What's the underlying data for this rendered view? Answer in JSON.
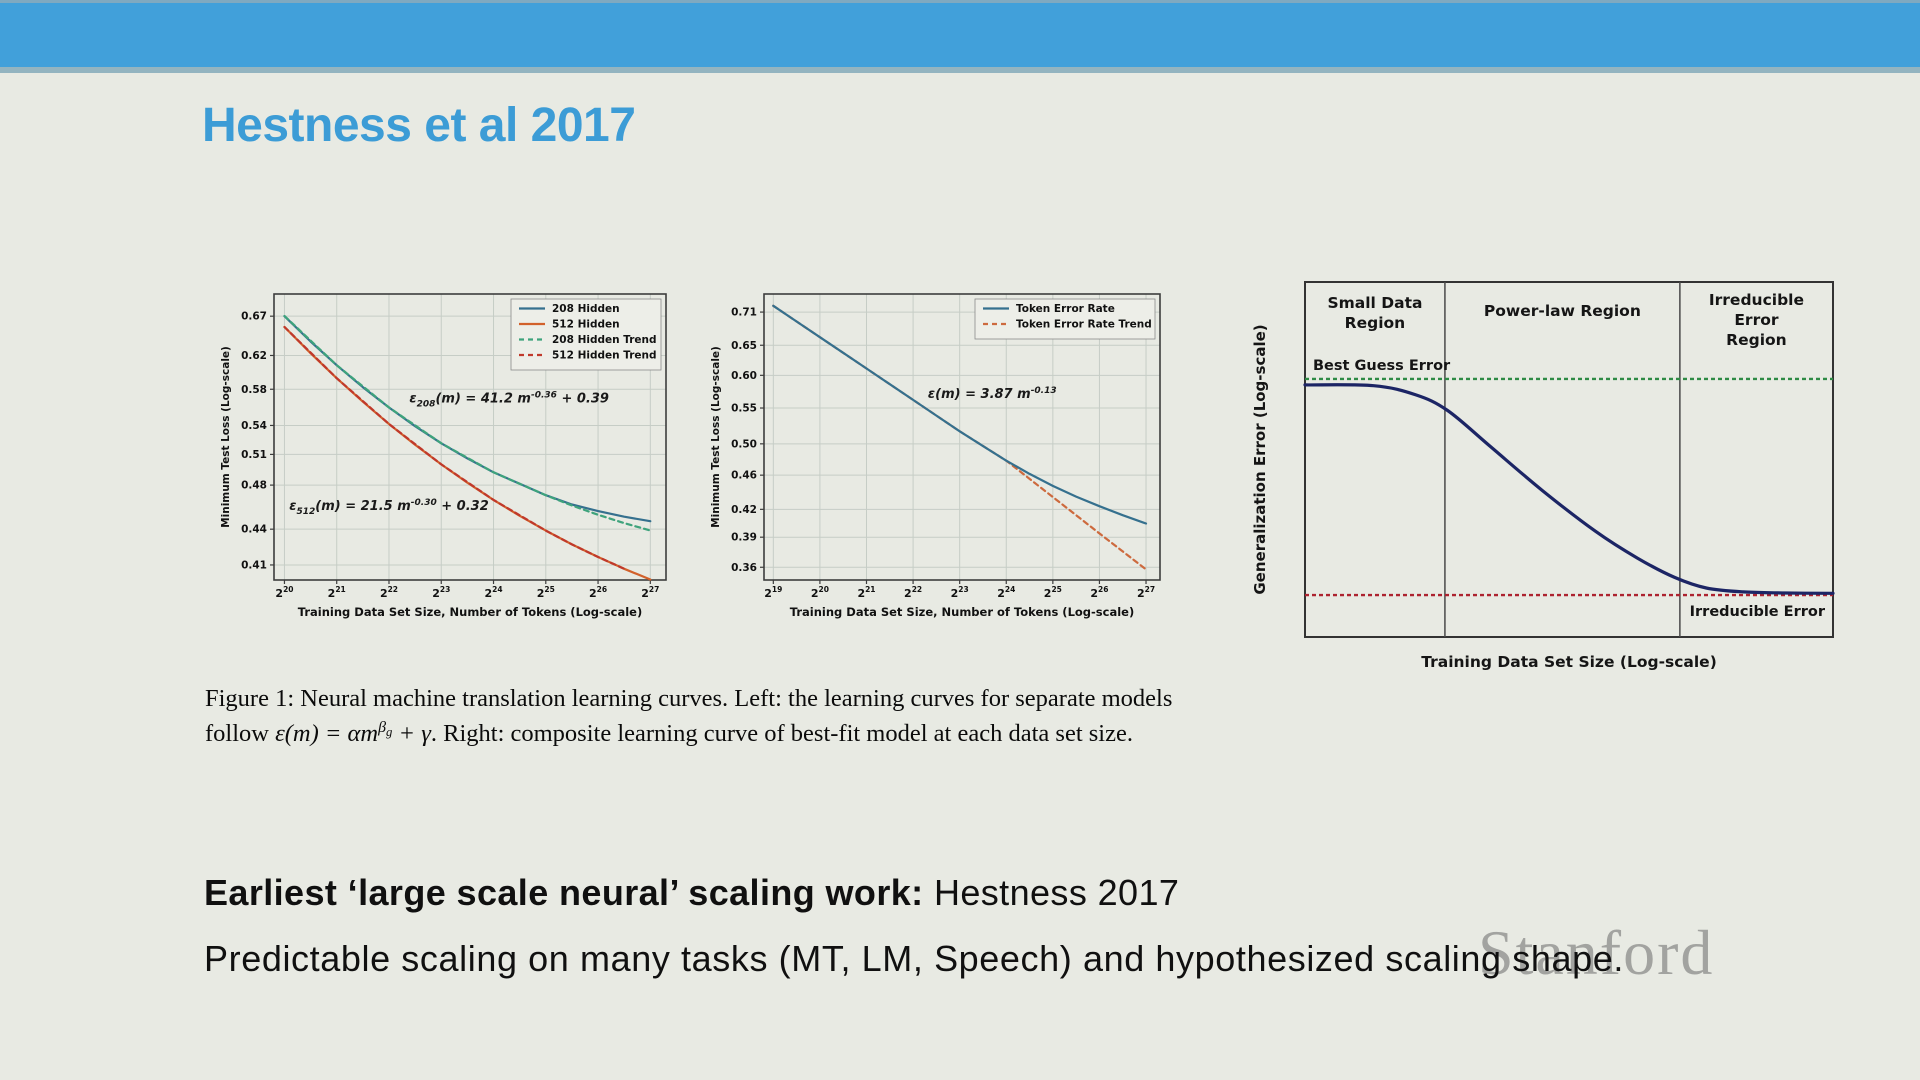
{
  "slide": {
    "title": "Hestness et al 2017",
    "footer_line1_bold": "Earliest ‘large scale neural’ scaling work:",
    "footer_line1_rest": " Hestness 2017",
    "footer_line2": "Predictable scaling on many tasks (MT, LM, Speech) and hypothesized scaling shape.",
    "watermark": "Stanford",
    "accent_color": "#41a0da"
  },
  "caption": {
    "line1": "Figure 1: Neural machine translation learning curves. Left: the learning curves for separate models",
    "line2_pre": "follow ",
    "line2_math_base": "ε(m) = αm",
    "line2_math_sup": "β",
    "line2_math_supsub": "g",
    "line2_math_tail": " + γ",
    "line2_post": ". Right: composite learning curve of best-fit model at each data set size."
  },
  "chart_data": [
    {
      "type": "line",
      "title": "",
      "xlabel": "Training Data Set Size, Number of Tokens (Log-scale)",
      "ylabel": "Minimum Test Loss (Log-scale)",
      "x_scale": "powers-of-2",
      "y_scale": "log",
      "xlim": [
        19.8,
        27.3
      ],
      "ylim": [
        0.398,
        0.7
      ],
      "x_ticks": [
        20,
        21,
        22,
        23,
        24,
        25,
        26,
        27
      ],
      "y_ticks": [
        0.67,
        0.62,
        0.58,
        0.54,
        0.51,
        0.48,
        0.44,
        0.41
      ],
      "grid": true,
      "legend_position": "upper-right",
      "series": [
        {
          "name": "208 Hidden",
          "color": "#35708e",
          "dash": null,
          "z": 1,
          "points": [
            [
              20,
              0.67
            ],
            [
              20.5,
              0.6373
            ],
            [
              21,
              0.6082
            ],
            [
              21.5,
              0.5824
            ],
            [
              22,
              0.5595
            ],
            [
              22.5,
              0.5392
            ],
            [
              23,
              0.5213
            ],
            [
              23.5,
              0.506
            ],
            [
              24,
              0.4923
            ],
            [
              24.5,
              0.4812
            ],
            [
              25,
              0.4705
            ],
            [
              25.5,
              0.462
            ],
            [
              26,
              0.456
            ],
            [
              26.5,
              0.451
            ],
            [
              27,
              0.447
            ]
          ]
        },
        {
          "name": "512 Hidden",
          "color": "#d2612b",
          "dash": null,
          "z": 1,
          "points": [
            [
              20,
              0.6559
            ],
            [
              20.5,
              0.6228
            ],
            [
              21,
              0.5928
            ],
            [
              21.5,
              0.5659
            ],
            [
              22,
              0.5416
            ],
            [
              22.5,
              0.5198
            ],
            [
              23,
              0.5
            ],
            [
              23.5,
              0.4823
            ],
            [
              24,
              0.4662
            ],
            [
              24.5,
              0.4518
            ],
            [
              25,
              0.4388
            ],
            [
              25.5,
              0.427
            ],
            [
              26,
              0.4165
            ],
            [
              26.5,
              0.4069
            ],
            [
              27,
              0.3984
            ]
          ]
        },
        {
          "name": "208 Hidden Trend",
          "color": "#3ea37c",
          "dash": "5,4",
          "z": 2,
          "points": [
            [
              20,
              0.6703
            ],
            [
              21,
              0.6082
            ],
            [
              22,
              0.5595
            ],
            [
              23,
              0.5213
            ],
            [
              24,
              0.4923
            ],
            [
              25,
              0.4705
            ],
            [
              25.5,
              0.4611
            ],
            [
              26,
              0.4527
            ],
            [
              26.5,
              0.4453
            ],
            [
              27,
              0.4389
            ]
          ]
        },
        {
          "name": "512 Hidden Trend",
          "color": "#c0392b",
          "dash": "5,4",
          "z": 2,
          "points": [
            [
              20,
              0.6559
            ],
            [
              21,
              0.5928
            ],
            [
              22,
              0.5416
            ],
            [
              23,
              0.5
            ],
            [
              24,
              0.4662
            ],
            [
              25,
              0.4388
            ],
            [
              25.5,
              0.427
            ],
            [
              26,
              0.4165
            ],
            [
              26.5,
              0.4069
            ]
          ]
        }
      ],
      "annotations": [
        {
          "x": 24.3,
          "y": 0.565,
          "parts": [
            {
              "t": "ε"
            },
            {
              "sub": "208"
            },
            {
              "t": "(m) = 41.2 m"
            },
            {
              "sup": "-0.36"
            },
            {
              "t": " + 0.39"
            }
          ]
        },
        {
          "x": 22.0,
          "y": 0.457,
          "parts": [
            {
              "t": "ε"
            },
            {
              "sub": "512"
            },
            {
              "t": "(m) = 21.5 m"
            },
            {
              "sup": "-0.30"
            },
            {
              "t": " + 0.32"
            }
          ]
        }
      ]
    },
    {
      "type": "line",
      "title": "",
      "xlabel": "Training Data Set Size, Number of Tokens (Log-scale)",
      "ylabel": "Minimum Test Loss (Log-scale)",
      "x_scale": "powers-of-2",
      "y_scale": "log",
      "xlim": [
        18.8,
        27.3
      ],
      "ylim": [
        0.348,
        0.745
      ],
      "x_ticks": [
        19,
        20,
        21,
        22,
        23,
        24,
        25,
        26,
        27
      ],
      "y_ticks": [
        0.71,
        0.65,
        0.6,
        0.55,
        0.5,
        0.46,
        0.42,
        0.39,
        0.36
      ],
      "grid": true,
      "legend_position": "upper-right",
      "series": [
        {
          "name": "Token Error Rate",
          "color": "#35708e",
          "dash": null,
          "z": 2,
          "points": [
            [
              19,
              0.722
            ],
            [
              19.5,
              0.6925
            ],
            [
              20,
              0.664
            ],
            [
              20.5,
              0.637
            ],
            [
              21,
              0.611
            ],
            [
              21.5,
              0.586
            ],
            [
              22,
              0.562
            ],
            [
              22.5,
              0.539
            ],
            [
              23,
              0.517
            ],
            [
              23.5,
              0.497
            ],
            [
              24,
              0.478
            ],
            [
              24.5,
              0.4615
            ],
            [
              25,
              0.447
            ],
            [
              25.5,
              0.4345
            ],
            [
              26,
              0.4235
            ],
            [
              26.5,
              0.4135
            ],
            [
              27,
              0.4045
            ]
          ]
        },
        {
          "name": "Token Error Rate Trend",
          "color": "#cd6a3e",
          "dash": "5,4",
          "z": 1,
          "points": [
            [
              19,
              0.722
            ],
            [
              20,
              0.664
            ],
            [
              21,
              0.611
            ],
            [
              22,
              0.562
            ],
            [
              23,
              0.517
            ],
            [
              24,
              0.478
            ],
            [
              25,
              0.434
            ],
            [
              26,
              0.394
            ],
            [
              27,
              0.358
            ]
          ]
        }
      ],
      "annotations": [
        {
          "x": 23.7,
          "y": 0.565,
          "parts": [
            {
              "t": "ε(m) = 3.87 m"
            },
            {
              "sup": "-0.13"
            },
            {
              "t": ""
            }
          ]
        }
      ]
    },
    {
      "type": "concept-line",
      "xlabel": "Training Data Set Size (Log-scale)",
      "ylabel": "Generalization Error (Log-scale)",
      "regions": [
        {
          "lines": [
            "Small Data",
            "Region"
          ],
          "cx": 0.1325,
          "dy": 26
        },
        {
          "lines": [
            "Power-law Region"
          ],
          "cx": 0.4875,
          "dy": 34
        },
        {
          "lines": [
            "Irreducible",
            "Error",
            "Region"
          ],
          "cx": 0.855,
          "dy": 23
        }
      ],
      "dividers": [
        0.265,
        0.71
      ],
      "hlines": [
        {
          "label": "Best Guess Error",
          "y": 0.273,
          "color": "#2e8b45",
          "label_anchor": "left-above"
        },
        {
          "label": "Irreducible Error",
          "y": 0.882,
          "color": "#ad2330",
          "label_anchor": "right-below"
        }
      ],
      "curve": {
        "color": "#1c2565",
        "points": [
          [
            0,
            0.29
          ],
          [
            0.13,
            0.292
          ],
          [
            0.21,
            0.318
          ],
          [
            0.27,
            0.362
          ],
          [
            0.35,
            0.462
          ],
          [
            0.45,
            0.588
          ],
          [
            0.55,
            0.702
          ],
          [
            0.63,
            0.778
          ],
          [
            0.7,
            0.832
          ],
          [
            0.76,
            0.862
          ],
          [
            0.83,
            0.873
          ],
          [
            0.91,
            0.876
          ],
          [
            1,
            0.877
          ]
        ]
      }
    }
  ]
}
